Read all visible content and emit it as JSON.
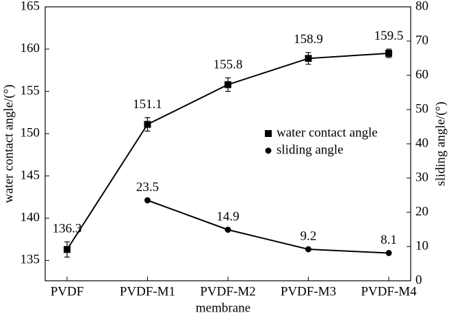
{
  "chart_data": {
    "type": "line",
    "xlabel": "membrane",
    "ylabel": "water contact angle/(°)",
    "y2label": "sliding angle/(°)",
    "categories": [
      "PVDF",
      "PVDF-M1",
      "PVDF-M2",
      "PVDF-M3",
      "PVDF-M4"
    ],
    "ylim": [
      132.6,
      165
    ],
    "yticks": [
      135,
      140,
      145,
      150,
      155,
      160,
      165
    ],
    "y2lim": [
      0,
      80
    ],
    "y2ticks": [
      0,
      10,
      20,
      30,
      40,
      50,
      60,
      70,
      80
    ],
    "legend": "right",
    "series": [
      {
        "name": "water contact angle",
        "color": "#000000",
        "marker": "square",
        "axis": "y",
        "values": [
          136.3,
          151.1,
          155.8,
          158.9,
          159.5
        ],
        "error": [
          0.9,
          0.8,
          0.8,
          0.7,
          0.5
        ]
      },
      {
        "name": "sliding angle",
        "color": "#000000",
        "marker": "circle",
        "axis": "y2",
        "values": [
          null,
          23.5,
          14.9,
          9.2,
          8.1
        ]
      }
    ]
  }
}
